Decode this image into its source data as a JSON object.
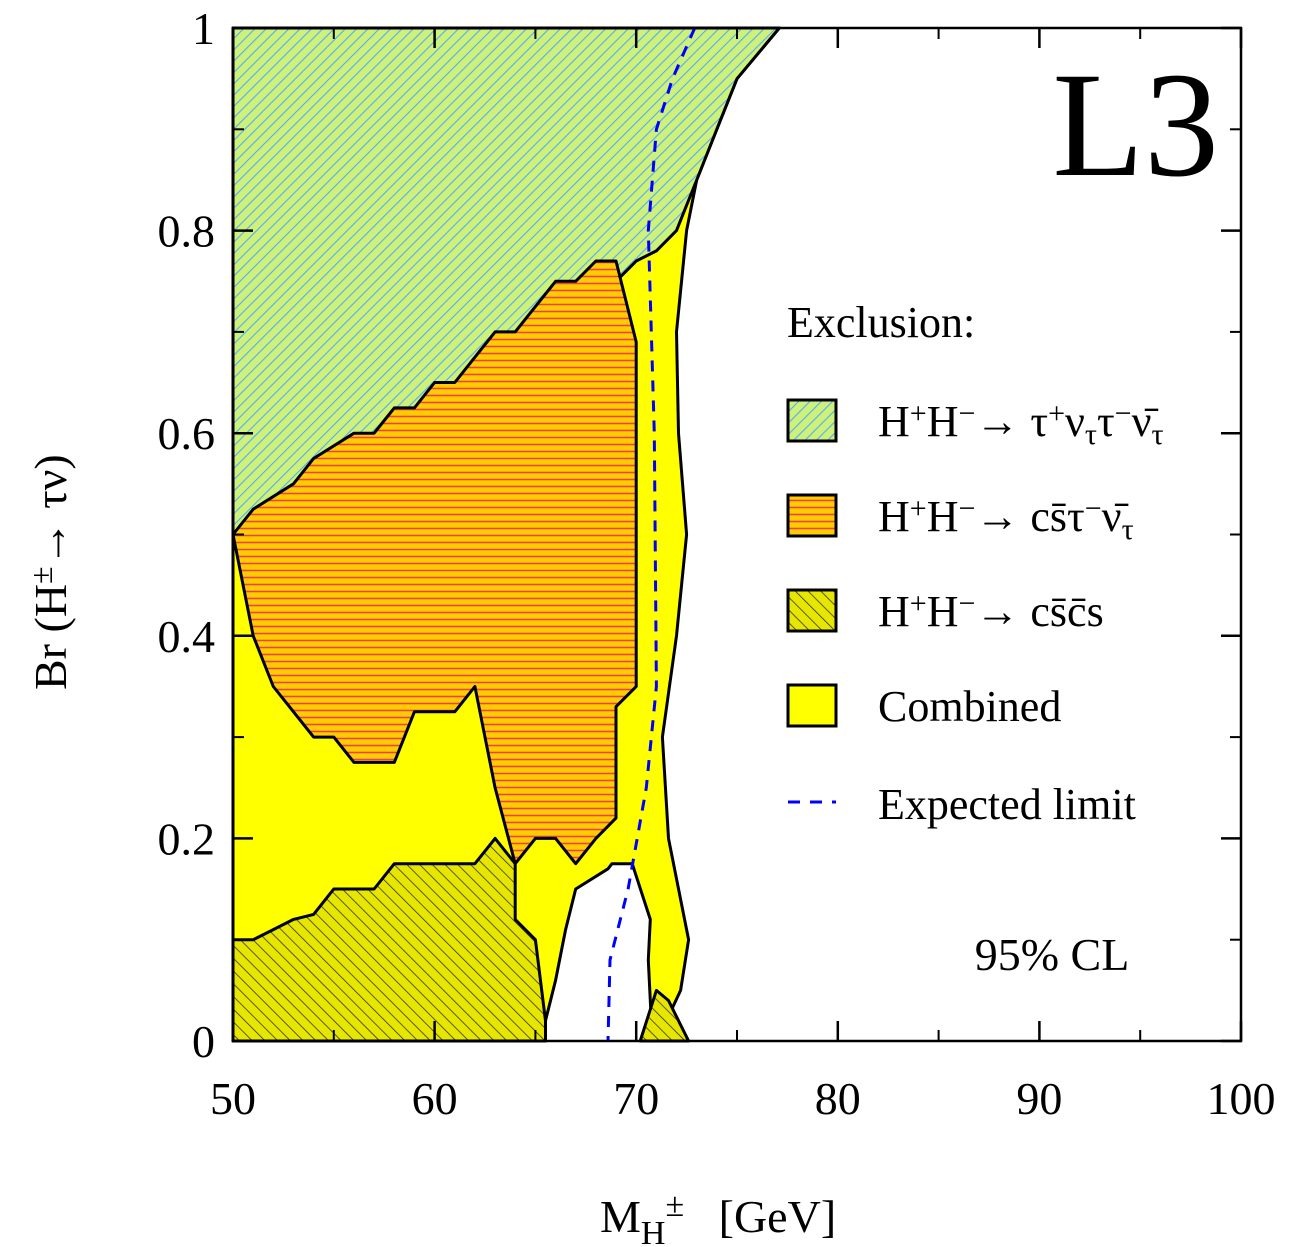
{
  "chart_data": {
    "type": "area",
    "title": "",
    "badge": "L3",
    "cl_label": "95% CL",
    "xlabel": {
      "main": "M",
      "sub": "H",
      "sup": "±",
      "unit": "[GeV]"
    },
    "ylabel": {
      "prefix": "Br (H",
      "sup": "±",
      "arrow": "→",
      "suffix": " τν)"
    },
    "xlim": [
      50,
      100
    ],
    "ylim": [
      0,
      1
    ],
    "xticks": [
      50,
      60,
      70,
      80,
      90,
      100
    ],
    "xtick_labels": [
      "50",
      "60",
      "70",
      "80",
      "90",
      "100"
    ],
    "yticks": [
      0,
      0.2,
      0.4,
      0.6,
      0.8,
      1
    ],
    "ytick_labels": [
      "0",
      "0.2",
      "0.4",
      "0.6",
      "0.8",
      "1"
    ],
    "grid": false,
    "legend_position": "right",
    "legend_title": "Exclusion:",
    "legend": [
      {
        "key": "tau",
        "parts": [
          [
            "H",
            null
          ],
          [
            "+",
            "sup"
          ],
          [
            "H",
            null
          ],
          [
            "−",
            "sup"
          ],
          [
            "→ ",
            null
          ],
          [
            "τ",
            null
          ],
          [
            "+",
            "sup"
          ],
          [
            "ν",
            null
          ],
          [
            "τ",
            "sub"
          ],
          [
            "τ",
            null
          ],
          [
            "−",
            "sup"
          ],
          [
            "ν̄",
            null
          ],
          [
            "τ",
            "sub"
          ]
        ]
      },
      {
        "key": "cstau",
        "parts": [
          [
            "H",
            null
          ],
          [
            "+",
            "sup"
          ],
          [
            "H",
            null
          ],
          [
            "−",
            "sup"
          ],
          [
            "→ ",
            null
          ],
          [
            "cs̄τ",
            null
          ],
          [
            "−",
            "sup"
          ],
          [
            "ν̄",
            null
          ],
          [
            "τ",
            "sub"
          ]
        ]
      },
      {
        "key": "cscs",
        "parts": [
          [
            "H",
            null
          ],
          [
            "+",
            "sup"
          ],
          [
            "H",
            null
          ],
          [
            "−",
            "sup"
          ],
          [
            "→ ",
            null
          ],
          [
            "cs̄c̄s",
            null
          ]
        ]
      },
      {
        "key": "combined",
        "parts": [
          [
            "Combined",
            null
          ]
        ]
      },
      {
        "key": "expected",
        "parts": [
          [
            "Expected limit",
            null
          ]
        ]
      }
    ],
    "colors": {
      "combined": "#ffff00",
      "tau_fill": "#cdf27a",
      "tau_hatch": "#5aa6ff",
      "cstau_fill": "#ffcc00",
      "cstau_hatch": "#e8454a",
      "cscs_fill": "#e6e600",
      "cscs_hatch": "#2a2a2a",
      "expected": "#0000ff",
      "outline": "#000000"
    },
    "series": [
      {
        "key": "combined",
        "name": "Combined",
        "x": [
          50,
          77.1,
          75.0,
          74.0,
          73.0,
          72.5,
          72.0,
          72.1,
          72.5,
          72.0,
          71.3,
          71.6,
          72.6,
          72.2,
          71.5,
          70.8,
          70.6,
          70.7,
          69.8,
          68.8,
          68.6,
          67.0,
          66.5,
          66.0,
          65.5,
          65.5,
          50
        ],
        "y": [
          1,
          1,
          0.95,
          0.9,
          0.85,
          0.8,
          0.7,
          0.6,
          0.5,
          0.4,
          0.3,
          0.2,
          0.1,
          0.05,
          0.02,
          0,
          0.08,
          0.12,
          0.175,
          0.175,
          0.17,
          0.15,
          0.11,
          0.06,
          0.02,
          0,
          0
        ]
      },
      {
        "key": "tau",
        "name": "H+H− → τ+νττ−ν̄τ",
        "x": [
          50,
          77.1,
          75.0,
          74.0,
          73.0,
          72.0,
          71.0,
          70.0,
          69.0,
          68.0,
          67.0,
          66.5,
          65.0,
          64.0,
          63.5,
          63.0,
          62.0,
          61.0,
          60.0,
          59.0,
          58.0,
          57.0,
          56.0,
          55.0,
          54.0,
          53.0,
          52.0,
          51.0,
          50.0
        ],
        "y": [
          1,
          1,
          0.95,
          0.9,
          0.85,
          0.8,
          0.78,
          0.77,
          0.75,
          0.75,
          0.72,
          0.7,
          0.69,
          0.675,
          0.675,
          0.66,
          0.64,
          0.625,
          0.625,
          0.6,
          0.6,
          0.575,
          0.575,
          0.55,
          0.55,
          0.53,
          0.52,
          0.505,
          0.5
        ]
      },
      {
        "key": "cstau",
        "name": "H+H− → cs̄τ−ν̄τ",
        "x": [
          50.0,
          51.0,
          53.0,
          54.0,
          56.0,
          57.0,
          58.0,
          59.0,
          60.0,
          61.0,
          62.0,
          63.0,
          64.0,
          65.0,
          66.0,
          67.0,
          68.0,
          69.0,
          70.0,
          70.0,
          69.0,
          69.0,
          68.0,
          67.0,
          66.0,
          65.0,
          64.0,
          63.0,
          62.0,
          61.0,
          59.0,
          58.0,
          56.0,
          55.0,
          54.0,
          53.0,
          52.0,
          51.0
        ],
        "y": [
          0.5,
          0.525,
          0.55,
          0.575,
          0.6,
          0.6,
          0.625,
          0.625,
          0.65,
          0.65,
          0.675,
          0.7,
          0.7,
          0.725,
          0.75,
          0.75,
          0.77,
          0.77,
          0.69,
          0.35,
          0.33,
          0.22,
          0.2,
          0.175,
          0.2,
          0.2,
          0.175,
          0.25,
          0.35,
          0.325,
          0.325,
          0.275,
          0.275,
          0.3,
          0.3,
          0.325,
          0.35,
          0.4
        ]
      },
      {
        "key": "cscs",
        "name": "H+H− → cs̄c̄s",
        "x": [
          50.0,
          51.0,
          52.0,
          53.0,
          54.0,
          55.0,
          57.0,
          58.0,
          62.0,
          63.0,
          64.0,
          64.0,
          65.0,
          65.5,
          65.5,
          50.0
        ],
        "y": [
          0.1,
          0.1,
          0.11,
          0.12,
          0.125,
          0.15,
          0.15,
          0.175,
          0.175,
          0.2,
          0.175,
          0.12,
          0.1,
          0.02,
          0,
          0
        ]
      },
      {
        "key": "cscs_b",
        "name": "H+H− → cs̄c̄s",
        "x": [
          70.2,
          71.0,
          71.6,
          72.6,
          72.2
        ],
        "y": [
          0,
          0.05,
          0.04,
          0.0,
          0.0
        ]
      },
      {
        "key": "expected",
        "name": "Expected limit",
        "x": [
          72.9,
          71.8,
          71.0,
          70.6,
          70.9,
          71.0,
          70.5,
          69.6,
          68.7,
          68.6
        ],
        "y": [
          1,
          0.95,
          0.9,
          0.8,
          0.6,
          0.35,
          0.25,
          0.15,
          0.08,
          0
        ]
      }
    ]
  }
}
